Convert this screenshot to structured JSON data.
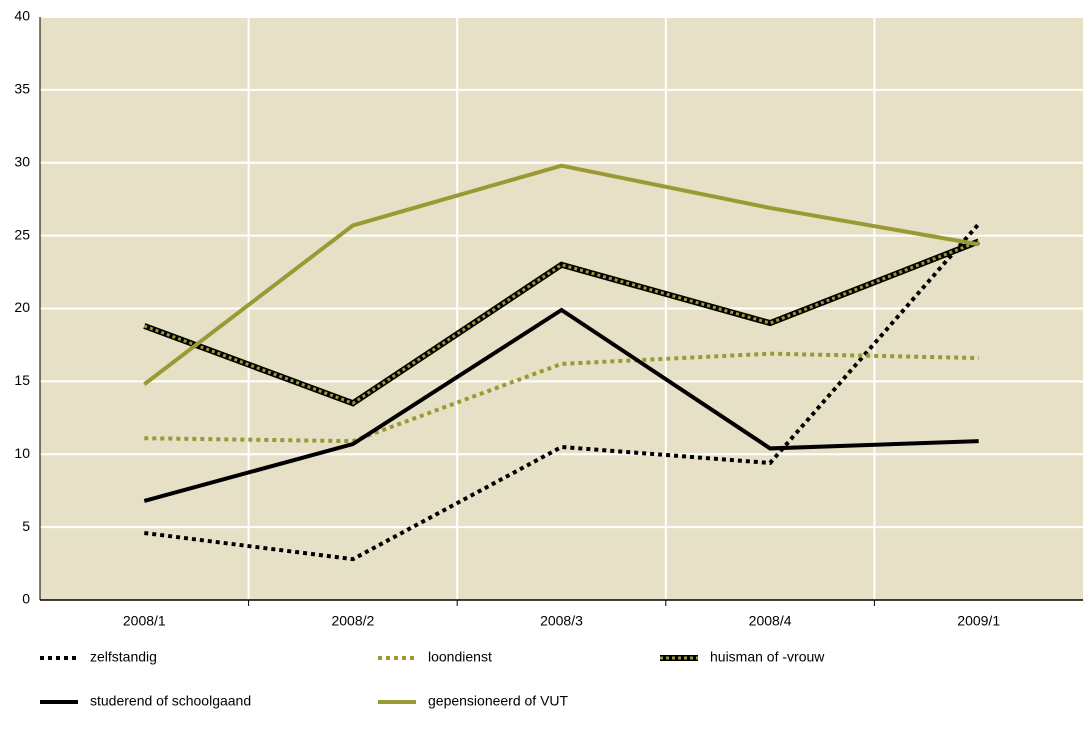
{
  "chart_data": {
    "type": "line",
    "categories": [
      "2008/1",
      "2008/2",
      "2008/3",
      "2008/4",
      "2009/1"
    ],
    "series": [
      {
        "name": "zelfstandig",
        "color": "#000000",
        "dashed": true,
        "values": [
          4.6,
          2.8,
          10.5,
          9.4,
          25.8
        ]
      },
      {
        "name": "loondienst",
        "color": "#9a9a35",
        "dashed": true,
        "values": [
          11.1,
          10.9,
          16.2,
          16.9,
          16.6
        ]
      },
      {
        "name": "huisman of -vrouw",
        "color": "#000000",
        "dash_color": "#9a9a35",
        "dashed": false,
        "values": [
          18.8,
          13.5,
          23.0,
          19.0,
          24.6
        ]
      },
      {
        "name": "studerend of schoolgaand",
        "color": "#000000",
        "dashed": false,
        "values": [
          6.8,
          10.7,
          19.9,
          10.4,
          10.9
        ]
      },
      {
        "name": "gepensioneerd of VUT",
        "color": "#9a9a35",
        "dashed": false,
        "values": [
          14.8,
          25.7,
          29.8,
          26.9,
          24.4
        ]
      }
    ],
    "ylim": [
      0,
      40
    ],
    "yticks": [
      0,
      5,
      10,
      15,
      20,
      25,
      30,
      35,
      40
    ],
    "grid": true,
    "background": "#e6e0c6"
  }
}
